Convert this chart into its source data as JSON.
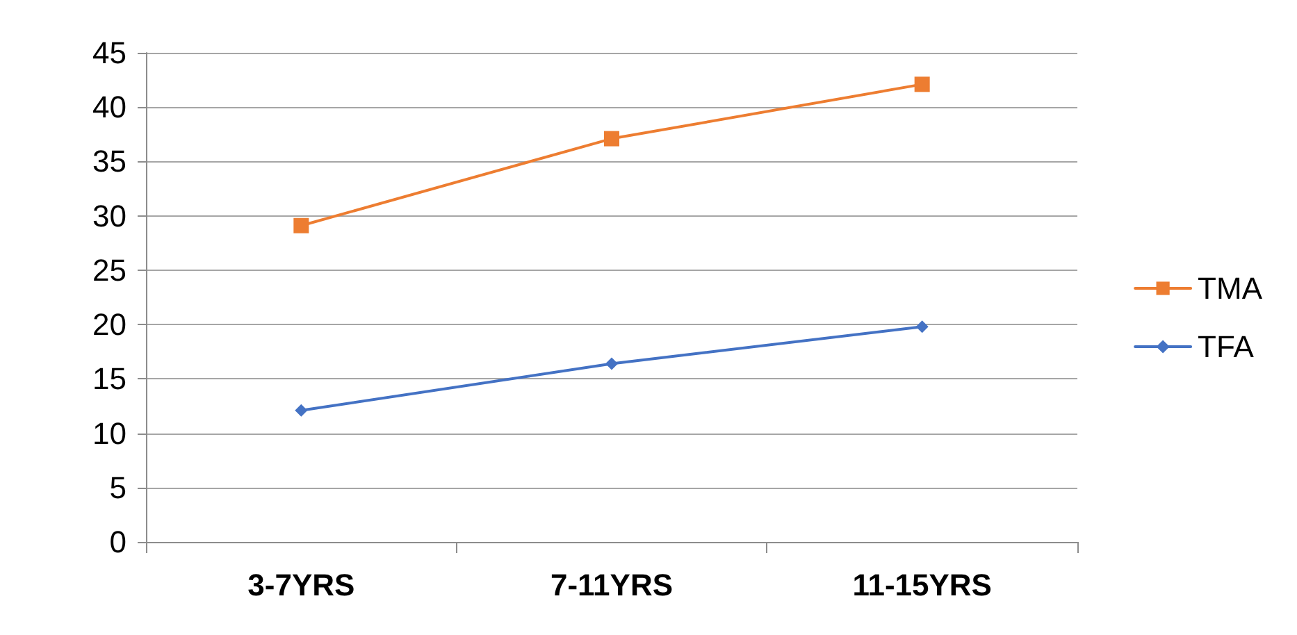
{
  "chart_data": {
    "type": "line",
    "categories": [
      "3-7YRS",
      "7-11YRS",
      "11-15YRS"
    ],
    "series": [
      {
        "name": "TMA",
        "color": "#ed7d31",
        "marker": "square",
        "values": [
          29.1,
          37.1,
          42.1
        ]
      },
      {
        "name": "TFA",
        "color": "#4472c4",
        "marker": "diamond",
        "values": [
          12.1,
          16.4,
          19.8
        ]
      }
    ],
    "ylim": [
      0,
      45
    ],
    "yticks": [
      0,
      5,
      10,
      15,
      20,
      25,
      30,
      35,
      40,
      45
    ],
    "grid": "y",
    "legend": "right"
  }
}
